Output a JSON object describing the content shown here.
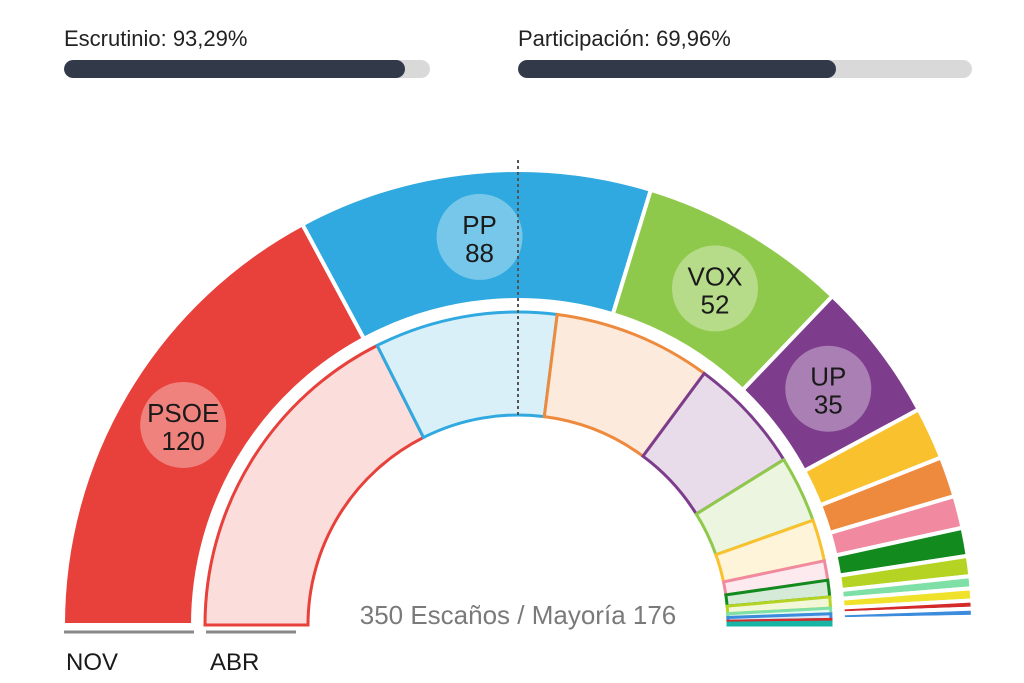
{
  "header": {
    "escrutinio": {
      "label": "Escrutinio: 93,29%",
      "value": 93.29
    },
    "participacion": {
      "label": "Participación: 69,96%",
      "value": 69.96
    }
  },
  "chart_data": {
    "type": "parliament-semicircle",
    "total_label": "350 Escaños / Mayoría 176",
    "total_seats": 350,
    "majority": 176,
    "rings": [
      {
        "name": "NOV",
        "parties": [
          {
            "name": "PSOE",
            "seats": 120,
            "color": "#e8403a",
            "labeled": true
          },
          {
            "name": "PP",
            "seats": 88,
            "color": "#2fa9df",
            "labeled": true
          },
          {
            "name": "VOX",
            "seats": 52,
            "color": "#8fc94b",
            "labeled": true
          },
          {
            "name": "UP",
            "seats": 35,
            "color": "#7d3c8c",
            "labeled": true
          },
          {
            "name": "",
            "seats": 13,
            "color": "#f8c12d",
            "labeled": false
          },
          {
            "name": "",
            "seats": 10,
            "color": "#ee8a3e",
            "labeled": false
          },
          {
            "name": "",
            "seats": 8,
            "color": "#f18aa1",
            "labeled": false
          },
          {
            "name": "",
            "seats": 7,
            "color": "#138a1e",
            "labeled": false
          },
          {
            "name": "",
            "seats": 5,
            "color": "#b5d323",
            "labeled": false
          },
          {
            "name": "",
            "seats": 3,
            "color": "#7ee0a6",
            "labeled": false
          },
          {
            "name": "",
            "seats": 3,
            "color": "#f0e12a",
            "labeled": false
          },
          {
            "name": "",
            "seats": 2,
            "color": "#d42a2a",
            "labeled": false
          },
          {
            "name": "",
            "seats": 2,
            "color": "#3c8bdc",
            "labeled": false
          },
          {
            "name": "",
            "seats": 1,
            "color": "#17b5a6",
            "labeled": false
          },
          {
            "name": "",
            "seats": 1,
            "color": "#2e8b3c",
            "labeled": false
          }
        ]
      },
      {
        "name": "ABR",
        "parties": [
          {
            "name": "",
            "seats": 123,
            "color": "#e8403a",
            "labeled": false
          },
          {
            "name": "",
            "seats": 66,
            "color": "#2fa9df",
            "labeled": false
          },
          {
            "name": "",
            "seats": 57,
            "color": "#ee8a3e",
            "labeled": false
          },
          {
            "name": "",
            "seats": 42,
            "color": "#7d3c8c",
            "labeled": false
          },
          {
            "name": "",
            "seats": 24,
            "color": "#8fc94b",
            "labeled": false
          },
          {
            "name": "",
            "seats": 15,
            "color": "#f8c12d",
            "labeled": false
          },
          {
            "name": "",
            "seats": 7,
            "color": "#f18aa1",
            "labeled": false
          },
          {
            "name": "",
            "seats": 6,
            "color": "#138a1e",
            "labeled": false
          },
          {
            "name": "",
            "seats": 4,
            "color": "#b5d323",
            "labeled": false
          },
          {
            "name": "",
            "seats": 2,
            "color": "#7ee0a6",
            "labeled": false
          },
          {
            "name": "",
            "seats": 2,
            "color": "#3c8bdc",
            "labeled": false
          },
          {
            "name": "",
            "seats": 1,
            "color": "#d42a2a",
            "labeled": false
          },
          {
            "name": "",
            "seats": 1,
            "color": "#17b5a6",
            "labeled": false
          }
        ]
      }
    ]
  }
}
